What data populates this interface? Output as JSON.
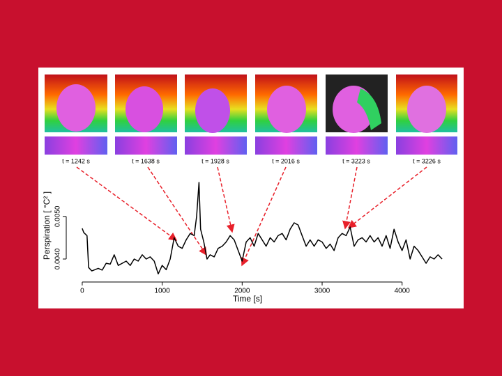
{
  "chart_data": {
    "type": "line",
    "ylabel": "Perspiration [ °C² ]",
    "xlabel": "Time [s]",
    "annotations": [
      "t = 1242 s",
      "t = 1638 s",
      "t = 1928 s",
      "t = 2016 s",
      "t = 3223 s",
      "t = 3226 s"
    ],
    "color": "#000000",
    "xlim": [
      -200,
      4700
    ],
    "ylim": [
      0.00346,
      0.00611
    ],
    "xticks": [
      0,
      1000,
      2000,
      3000,
      4000
    ],
    "yticks": [
      {
        "value": 0.004,
        "label": "0.0040"
      },
      {
        "value": 0.005,
        "label": "0.0050"
      }
    ],
    "x": [
      0,
      20,
      60,
      80,
      120,
      200,
      250,
      300,
      350,
      400,
      450,
      500,
      550,
      600,
      650,
      700,
      750,
      800,
      850,
      900,
      950,
      1000,
      1050,
      1100,
      1150,
      1200,
      1250,
      1300,
      1350,
      1400,
      1430,
      1460,
      1480,
      1520,
      1560,
      1600,
      1650,
      1700,
      1750,
      1800,
      1850,
      1900,
      1950,
      2000,
      2050,
      2100,
      2150,
      2200,
      2250,
      2300,
      2350,
      2400,
      2450,
      2500,
      2550,
      2600,
      2650,
      2700,
      2750,
      2800,
      2850,
      2900,
      2950,
      3000,
      3050,
      3100,
      3150,
      3200,
      3250,
      3300,
      3350,
      3400,
      3450,
      3500,
      3550,
      3600,
      3650,
      3700,
      3750,
      3800,
      3850,
      3900,
      3950,
      4000,
      4050,
      4100,
      4150,
      4200,
      4250,
      4300,
      4350,
      4400,
      4450,
      4500
    ],
    "values": [
      0.00472,
      0.00462,
      0.00455,
      0.0038,
      0.00372,
      0.00378,
      0.00374,
      0.0039,
      0.00388,
      0.0041,
      0.00385,
      0.0039,
      0.00395,
      0.00385,
      0.004,
      0.00395,
      0.0041,
      0.004,
      0.00405,
      0.00395,
      0.00365,
      0.00385,
      0.00375,
      0.004,
      0.0045,
      0.0043,
      0.00425,
      0.00445,
      0.0046,
      0.00455,
      0.005,
      0.0058,
      0.0047,
      0.0044,
      0.004,
      0.0041,
      0.00405,
      0.00425,
      0.0043,
      0.0044,
      0.00455,
      0.00445,
      0.0042,
      0.00395,
      0.0044,
      0.0045,
      0.0043,
      0.0046,
      0.00445,
      0.0043,
      0.0045,
      0.0044,
      0.00455,
      0.0046,
      0.00445,
      0.0047,
      0.00485,
      0.0048,
      0.00455,
      0.0043,
      0.00445,
      0.0043,
      0.00445,
      0.0044,
      0.00425,
      0.00435,
      0.0042,
      0.0045,
      0.0046,
      0.00455,
      0.00475,
      0.0043,
      0.00445,
      0.0045,
      0.0044,
      0.00455,
      0.0044,
      0.0045,
      0.0043,
      0.00455,
      0.00425,
      0.0047,
      0.0044,
      0.0042,
      0.00445,
      0.004,
      0.0043,
      0.0042,
      0.00405,
      0.0039,
      0.00405,
      0.004,
      0.0041,
      0.004
    ]
  }
}
